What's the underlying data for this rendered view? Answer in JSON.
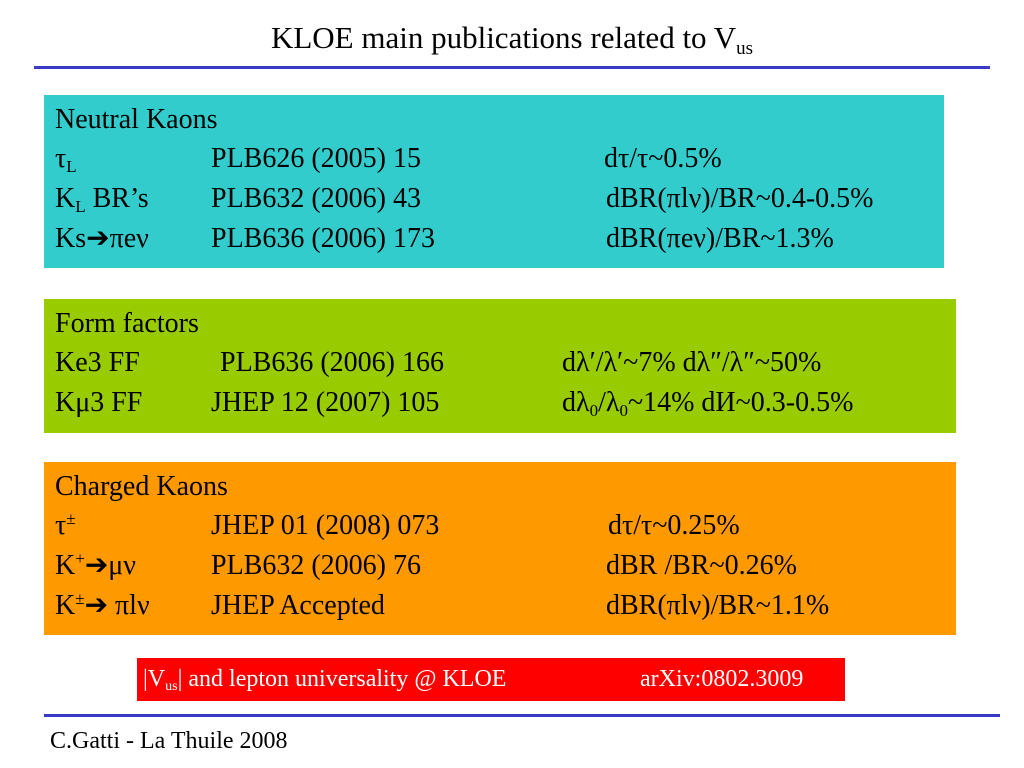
{
  "title": {
    "main": "KLOE main publications related to V",
    "sub": "us"
  },
  "neutral": {
    "heading": "Neutral Kaons",
    "rows": [
      {
        "label_main": "τ",
        "label_sub": "L",
        "label_tail": "",
        "reference": "PLB626  (2005) 15",
        "precision": "dτ/τ~0.5%"
      },
      {
        "label_main": "K",
        "label_sub": "L",
        "label_tail": " BR’s",
        "reference": "PLB632 (2006) 43",
        "precision": "dBR(πlν)/BR~0.4-0.5%"
      },
      {
        "label_main": "Ks➔πeν",
        "label_sub": "",
        "label_tail": "",
        "reference": "PLB636 (2006) 173",
        "precision": "dBR(πeν)/BR~1.3%"
      }
    ]
  },
  "form_factors": {
    "heading": "Form factors",
    "rows": [
      {
        "label": "Ke3 FF",
        "reference": "PLB636 (2006) 166",
        "precision": "dλ′/λ′~7%  dλ″/λ″~50%"
      },
      {
        "label": "Kμ3 FF",
        "reference": "JHEP 12 (2007) 105",
        "precision_a": "dλ",
        "precision_a_sub": "0",
        "precision_b": "/λ",
        "precision_b_sub": "0",
        "precision_c": "~14%  dИ~0.3-0.5%"
      }
    ]
  },
  "charged": {
    "heading": "Charged Kaons",
    "rows": [
      {
        "label_main": "τ",
        "label_sup": "±",
        "label_tail": "",
        "reference": "JHEP 01 (2008) 073",
        "precision": "dτ/τ~0.25%"
      },
      {
        "label_main": "K",
        "label_sup": "+",
        "label_tail": "➔μν",
        "reference": "PLB632 (2006) 76",
        "precision": "dBR /BR~0.26%"
      },
      {
        "label_main": "K",
        "label_sup": "±",
        "label_tail": "➔ πlν",
        "reference": "JHEP Accepted",
        "precision": "dBR(πlν)/BR~1.1%"
      }
    ]
  },
  "highlight": {
    "left_main": "|V",
    "left_sub": "us",
    "left_tail": "| and lepton universality @ KLOE",
    "right": "arXiv:0802.3009"
  },
  "footer": "C.Gatti - La Thuile 2008",
  "colors": {
    "neutral_box": "#33cccc",
    "form_factor_box": "#99cc00",
    "charged_box": "#ff9900",
    "highlight_box": "#ff0000",
    "rule": "#3a3ac8"
  }
}
